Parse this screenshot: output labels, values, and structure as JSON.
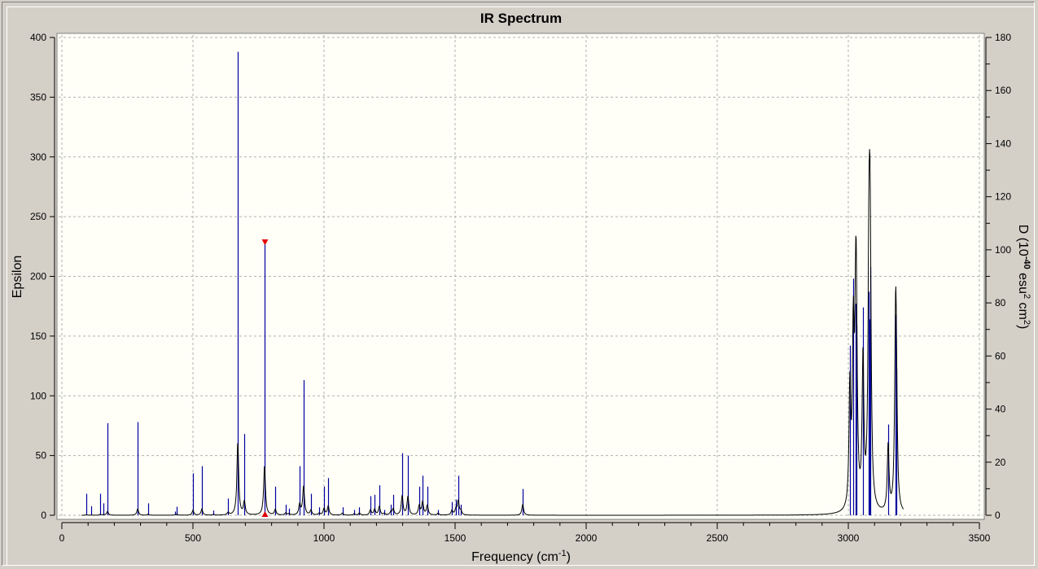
{
  "window": {
    "title": "IR Spectrum"
  },
  "colors": {
    "background": "#d4d0c8",
    "plot_background": "#fffff8",
    "stick": "#0000a0",
    "curve": "#000000",
    "grid": "#b0b0b0",
    "marker": "#e00000"
  },
  "chart_data": {
    "type": "line",
    "title": "IR Spectrum",
    "xlabel": "Frequency (cm",
    "xlabel_sup": "-1",
    "xlabel_end": ")",
    "ylabel": "Epsilon",
    "y2label_parts": [
      "D (10",
      "-40",
      " esu",
      "2",
      " cm",
      "2",
      ")"
    ],
    "xlim": [
      0,
      3500
    ],
    "ylim": [
      0,
      400
    ],
    "y2lim": [
      0,
      180
    ],
    "grid": true,
    "x_ticks": [
      "0",
      "500",
      "1000",
      "1500",
      "2000",
      "2500",
      "3000",
      "3500"
    ],
    "y_ticks": [
      "0",
      "50",
      "100",
      "150",
      "200",
      "250",
      "300",
      "350",
      "400"
    ],
    "y2_ticks": [
      "0",
      "20",
      "40",
      "60",
      "80",
      "100",
      "120",
      "140",
      "160",
      "180"
    ],
    "selected_mode_frequency": 773,
    "sticks_axis": "right",
    "sticks": [
      [
        93,
        8.1
      ],
      [
        112,
        3.4
      ],
      [
        146,
        8.1
      ],
      [
        158,
        4.5
      ],
      [
        174,
        34.7
      ],
      [
        289,
        35.1
      ],
      [
        329,
        4.5
      ],
      [
        433,
        1.4
      ],
      [
        438,
        3.2
      ],
      [
        500,
        15.8
      ],
      [
        534,
        18.5
      ],
      [
        578,
        1.8
      ],
      [
        634,
        6.3
      ],
      [
        671,
        174.6
      ],
      [
        696,
        30.6
      ],
      [
        773,
        103
      ],
      [
        814,
        10.8
      ],
      [
        854,
        4
      ],
      [
        866,
        2.5
      ],
      [
        907,
        18.5
      ],
      [
        922,
        50.9
      ],
      [
        950,
        8.1
      ],
      [
        982,
        3
      ],
      [
        1000,
        10.8
      ],
      [
        1016,
        14
      ],
      [
        1070,
        3
      ],
      [
        1115,
        2
      ],
      [
        1135,
        3
      ],
      [
        1177,
        7.2
      ],
      [
        1193,
        7.7
      ],
      [
        1211,
        11.3
      ],
      [
        1230,
        2
      ],
      [
        1255,
        4
      ],
      [
        1264,
        7.7
      ],
      [
        1298,
        23.4
      ],
      [
        1320,
        22.5
      ],
      [
        1363,
        10.8
      ],
      [
        1376,
        14.9
      ],
      [
        1394,
        10.8
      ],
      [
        1435,
        2
      ],
      [
        1488,
        5
      ],
      [
        1503,
        5.9
      ],
      [
        1512,
        14.9
      ],
      [
        1522,
        4
      ],
      [
        1758,
        9.9
      ],
      [
        3006,
        63.9
      ],
      [
        3019,
        89.1
      ],
      [
        3028,
        79.7
      ],
      [
        3031,
        71.6
      ],
      [
        3056,
        78.3
      ],
      [
        3078,
        84.2
      ],
      [
        3081,
        73.8
      ],
      [
        3084,
        93.6
      ],
      [
        3152,
        34.2
      ],
      [
        3180,
        75.6
      ],
      [
        3183,
        55
      ]
    ],
    "curve_range": [
      75,
      3210
    ]
  }
}
